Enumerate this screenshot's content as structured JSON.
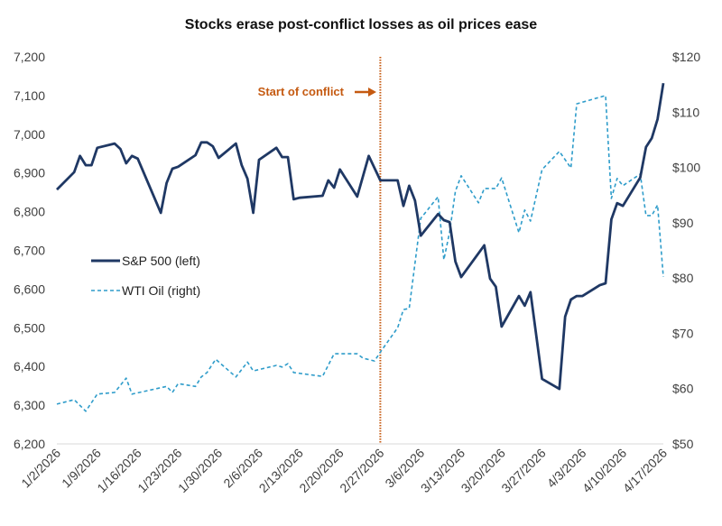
{
  "chart_data": {
    "type": "line",
    "title": "Stocks erase post-conflict losses as oil prices ease",
    "x_unit": "days since 1/2/2026",
    "x_tick_labels": [
      "1/2/2026",
      "1/9/2026",
      "1/16/2026",
      "1/23/2026",
      "1/30/2026",
      "2/6/2026",
      "2/13/2026",
      "2/20/2026",
      "2/27/2026",
      "3/6/2026",
      "3/13/2026",
      "3/20/2026",
      "3/27/2026",
      "4/3/2026",
      "4/10/2026",
      "4/17/2026"
    ],
    "xlim": [
      0,
      105
    ],
    "y_left": {
      "ylim": [
        6200,
        7200
      ],
      "ticks": [
        "6,200",
        "6,300",
        "6,400",
        "6,500",
        "6,600",
        "6,700",
        "6,800",
        "6,900",
        "7,000",
        "7,100",
        "7,200"
      ]
    },
    "y_right": {
      "ylim": [
        50,
        120
      ],
      "ticks": [
        "$50",
        "$60",
        "$70",
        "$80",
        "$90",
        "$100",
        "$110",
        "$120"
      ]
    },
    "annotation": {
      "label": "Start of conflict",
      "x": 56,
      "color": "#c55a11"
    },
    "legend_position": "center-left",
    "series": [
      {
        "name": "S&P 500 (left)",
        "axis": "left",
        "color": "#1f3864",
        "style": "solid",
        "points": [
          [
            0,
            6857
          ],
          [
            3,
            6902
          ],
          [
            4,
            6944
          ],
          [
            5,
            6920
          ],
          [
            6,
            6920
          ],
          [
            7,
            6965
          ],
          [
            10,
            6976
          ],
          [
            11,
            6962
          ],
          [
            12,
            6925
          ],
          [
            13,
            6944
          ],
          [
            14,
            6937
          ],
          [
            18,
            6797
          ],
          [
            19,
            6874
          ],
          [
            20,
            6911
          ],
          [
            21,
            6916
          ],
          [
            24,
            6946
          ],
          [
            25,
            6979
          ],
          [
            26,
            6979
          ],
          [
            27,
            6969
          ],
          [
            28,
            6939
          ],
          [
            31,
            6976
          ],
          [
            32,
            6920
          ],
          [
            33,
            6885
          ],
          [
            34,
            6797
          ],
          [
            35,
            6934
          ],
          [
            38,
            6965
          ],
          [
            39,
            6941
          ],
          [
            40,
            6941
          ],
          [
            41,
            6832
          ],
          [
            42,
            6836
          ],
          [
            46,
            6841
          ],
          [
            47,
            6881
          ],
          [
            48,
            6862
          ],
          [
            49,
            6909
          ],
          [
            52,
            6839
          ],
          [
            54,
            6944
          ],
          [
            56,
            6881
          ],
          [
            59,
            6881
          ],
          [
            60,
            6815
          ],
          [
            61,
            6867
          ],
          [
            62,
            6829
          ],
          [
            63,
            6738
          ],
          [
            66,
            6794
          ],
          [
            67,
            6778
          ],
          [
            68,
            6773
          ],
          [
            69,
            6671
          ],
          [
            70,
            6631
          ],
          [
            74,
            6713
          ],
          [
            75,
            6627
          ],
          [
            76,
            6606
          ],
          [
            77,
            6503
          ],
          [
            80,
            6582
          ],
          [
            81,
            6557
          ],
          [
            82,
            6592
          ],
          [
            84,
            6368
          ],
          [
            87,
            6342
          ],
          [
            88,
            6529
          ],
          [
            89,
            6573
          ],
          [
            90,
            6582
          ],
          [
            91,
            6582
          ],
          [
            94,
            6610
          ],
          [
            95,
            6615
          ],
          [
            96,
            6780
          ],
          [
            97,
            6822
          ],
          [
            98,
            6815
          ],
          [
            101,
            6888
          ],
          [
            102,
            6967
          ],
          [
            103,
            6990
          ],
          [
            104,
            7039
          ],
          [
            105,
            7132
          ]
        ]
      },
      {
        "name": "WTI Oil (right)",
        "axis": "right",
        "color": "#2e9cca",
        "style": "dashed",
        "points": [
          [
            0,
            57.2
          ],
          [
            3,
            58.0
          ],
          [
            5,
            55.9
          ],
          [
            7,
            59.0
          ],
          [
            10,
            59.3
          ],
          [
            12,
            61.9
          ],
          [
            13,
            59.0
          ],
          [
            19,
            60.4
          ],
          [
            20,
            59.3
          ],
          [
            21,
            60.9
          ],
          [
            24,
            60.4
          ],
          [
            25,
            62.1
          ],
          [
            26,
            62.9
          ],
          [
            27.5,
            65.3
          ],
          [
            31,
            62.1
          ],
          [
            33,
            64.8
          ],
          [
            34,
            63.2
          ],
          [
            38,
            64.2
          ],
          [
            39,
            63.9
          ],
          [
            40,
            64.5
          ],
          [
            41,
            62.9
          ],
          [
            46,
            62.2
          ],
          [
            48,
            66.3
          ],
          [
            52,
            66.3
          ],
          [
            53,
            65.5
          ],
          [
            55,
            65.0
          ],
          [
            56,
            66.6
          ],
          [
            59,
            71.0
          ],
          [
            60,
            74.3
          ],
          [
            61,
            74.5
          ],
          [
            63,
            90.8
          ],
          [
            66,
            94.7
          ],
          [
            67,
            83.3
          ],
          [
            68,
            88.3
          ],
          [
            69,
            95.7
          ],
          [
            70,
            98.5
          ],
          [
            73,
            93.6
          ],
          [
            74,
            96.2
          ],
          [
            76,
            96.2
          ],
          [
            77,
            98.1
          ],
          [
            80,
            88.2
          ],
          [
            81,
            92.3
          ],
          [
            82,
            90.3
          ],
          [
            84,
            99.6
          ],
          [
            87,
            102.9
          ],
          [
            89,
            99.9
          ],
          [
            90,
            111.5
          ],
          [
            95,
            113.0
          ],
          [
            96,
            94.4
          ],
          [
            97,
            98.0
          ],
          [
            98,
            96.7
          ],
          [
            101,
            98.8
          ],
          [
            102,
            91.3
          ],
          [
            103,
            91.3
          ],
          [
            104,
            93.2
          ],
          [
            105,
            80.2
          ]
        ]
      }
    ]
  }
}
